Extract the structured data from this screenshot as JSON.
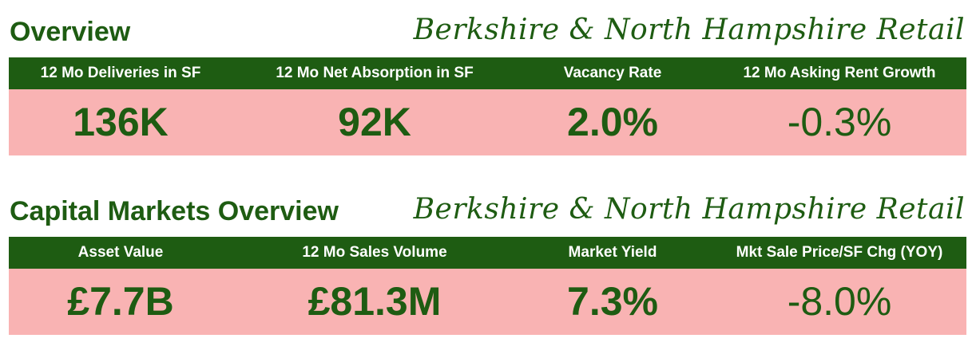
{
  "sections": [
    {
      "title": "Overview",
      "subtitle": "Berkshire & North Hampshire Retail",
      "metrics": [
        {
          "label": "12 Mo Deliveries in SF",
          "value": "136K"
        },
        {
          "label": "12 Mo Net Absorption in SF",
          "value": "92K"
        },
        {
          "label": "Vacancy Rate",
          "value": "2.0%"
        },
        {
          "label": "12 Mo Asking Rent Growth",
          "value": "-0.3%"
        }
      ]
    },
    {
      "title": "Capital Markets Overview",
      "subtitle": "Berkshire & North Hampshire Retail",
      "metrics": [
        {
          "label": "Asset Value",
          "value": "£7.7B"
        },
        {
          "label": "12 Mo Sales Volume",
          "value": "£81.3M"
        },
        {
          "label": "Market Yield",
          "value": "7.3%"
        },
        {
          "label": "Mkt Sale Price/SF Chg (YOY)",
          "value": "-8.0%"
        }
      ]
    }
  ]
}
